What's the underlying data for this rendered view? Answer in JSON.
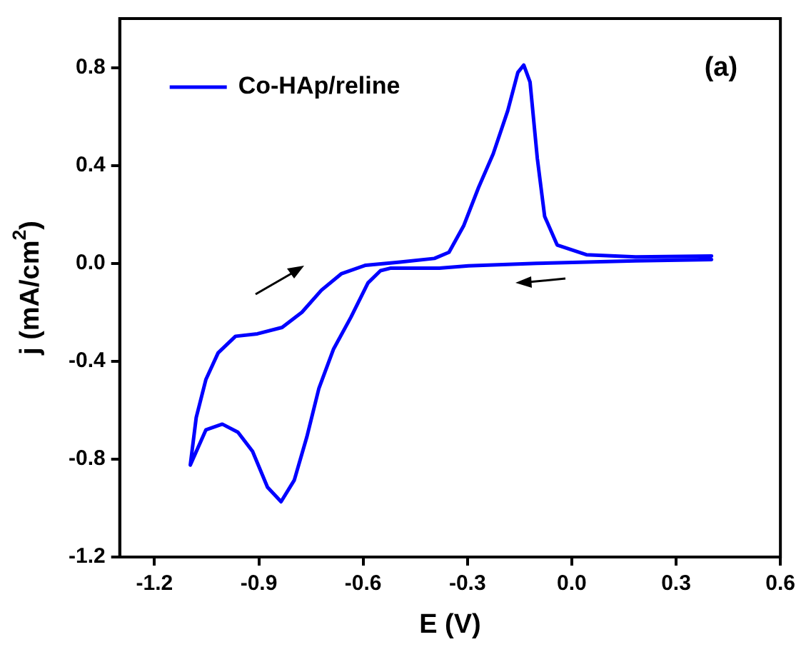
{
  "chart_data": {
    "type": "line",
    "xlabel": "E (V)",
    "ylabel": "j (mA/cm$^{2}$)",
    "annotations": [
      "(a)"
    ],
    "xlim": [
      -1.3,
      0.6
    ],
    "xticks": [
      -1.2,
      -0.9,
      -0.6,
      -0.3,
      {
        "value": 0,
        "label": "0.0"
      },
      0.3,
      0.6
    ],
    "ylim": [
      -1.2,
      1.0
    ],
    "yticks": [
      -1.2,
      -0.8,
      -0.4,
      {
        "value": 0,
        "label": "0.0"
      },
      0.4,
      0.8
    ],
    "grid": false,
    "legend": "top left",
    "marker": "none",
    "line_style": "solid",
    "series": [
      {
        "name": "Co-HAp/reline",
        "color": "#0000ff",
        "x": [
          0.402,
          0.184,
          0.042,
          -0.1,
          -0.297,
          -0.381,
          -0.522,
          -0.55,
          -0.586,
          -0.635,
          -0.685,
          -0.727,
          -0.762,
          -0.798,
          -0.836,
          -0.875,
          -0.918,
          -0.96,
          -1.005,
          -1.052,
          -1.097,
          -1.08,
          -1.052,
          -1.017,
          -0.967,
          -0.904,
          -0.833,
          -0.776,
          -0.72,
          -0.663,
          -0.593,
          -0.494,
          -0.395,
          -0.353,
          -0.311,
          -0.268,
          -0.226,
          -0.184,
          -0.155,
          -0.138,
          -0.12,
          -0.099,
          -0.078,
          -0.042,
          0.042,
          0.184,
          0.402
        ],
        "values": [
          0.015,
          0.01,
          0.005,
          0,
          -0.01,
          -0.02,
          -0.02,
          -0.03,
          -0.08,
          -0.22,
          -0.35,
          -0.51,
          -0.71,
          -0.886,
          -0.974,
          -0.915,
          -0.768,
          -0.69,
          -0.657,
          -0.68,
          -0.824,
          -0.63,
          -0.474,
          -0.366,
          -0.298,
          -0.288,
          -0.262,
          -0.2,
          -0.11,
          -0.043,
          -0.008,
          0.005,
          0.02,
          0.045,
          0.153,
          0.31,
          0.447,
          0.624,
          0.78,
          0.81,
          0.741,
          0.428,
          0.192,
          0.075,
          0.035,
          0.026,
          0.03
        ]
      }
    ]
  }
}
